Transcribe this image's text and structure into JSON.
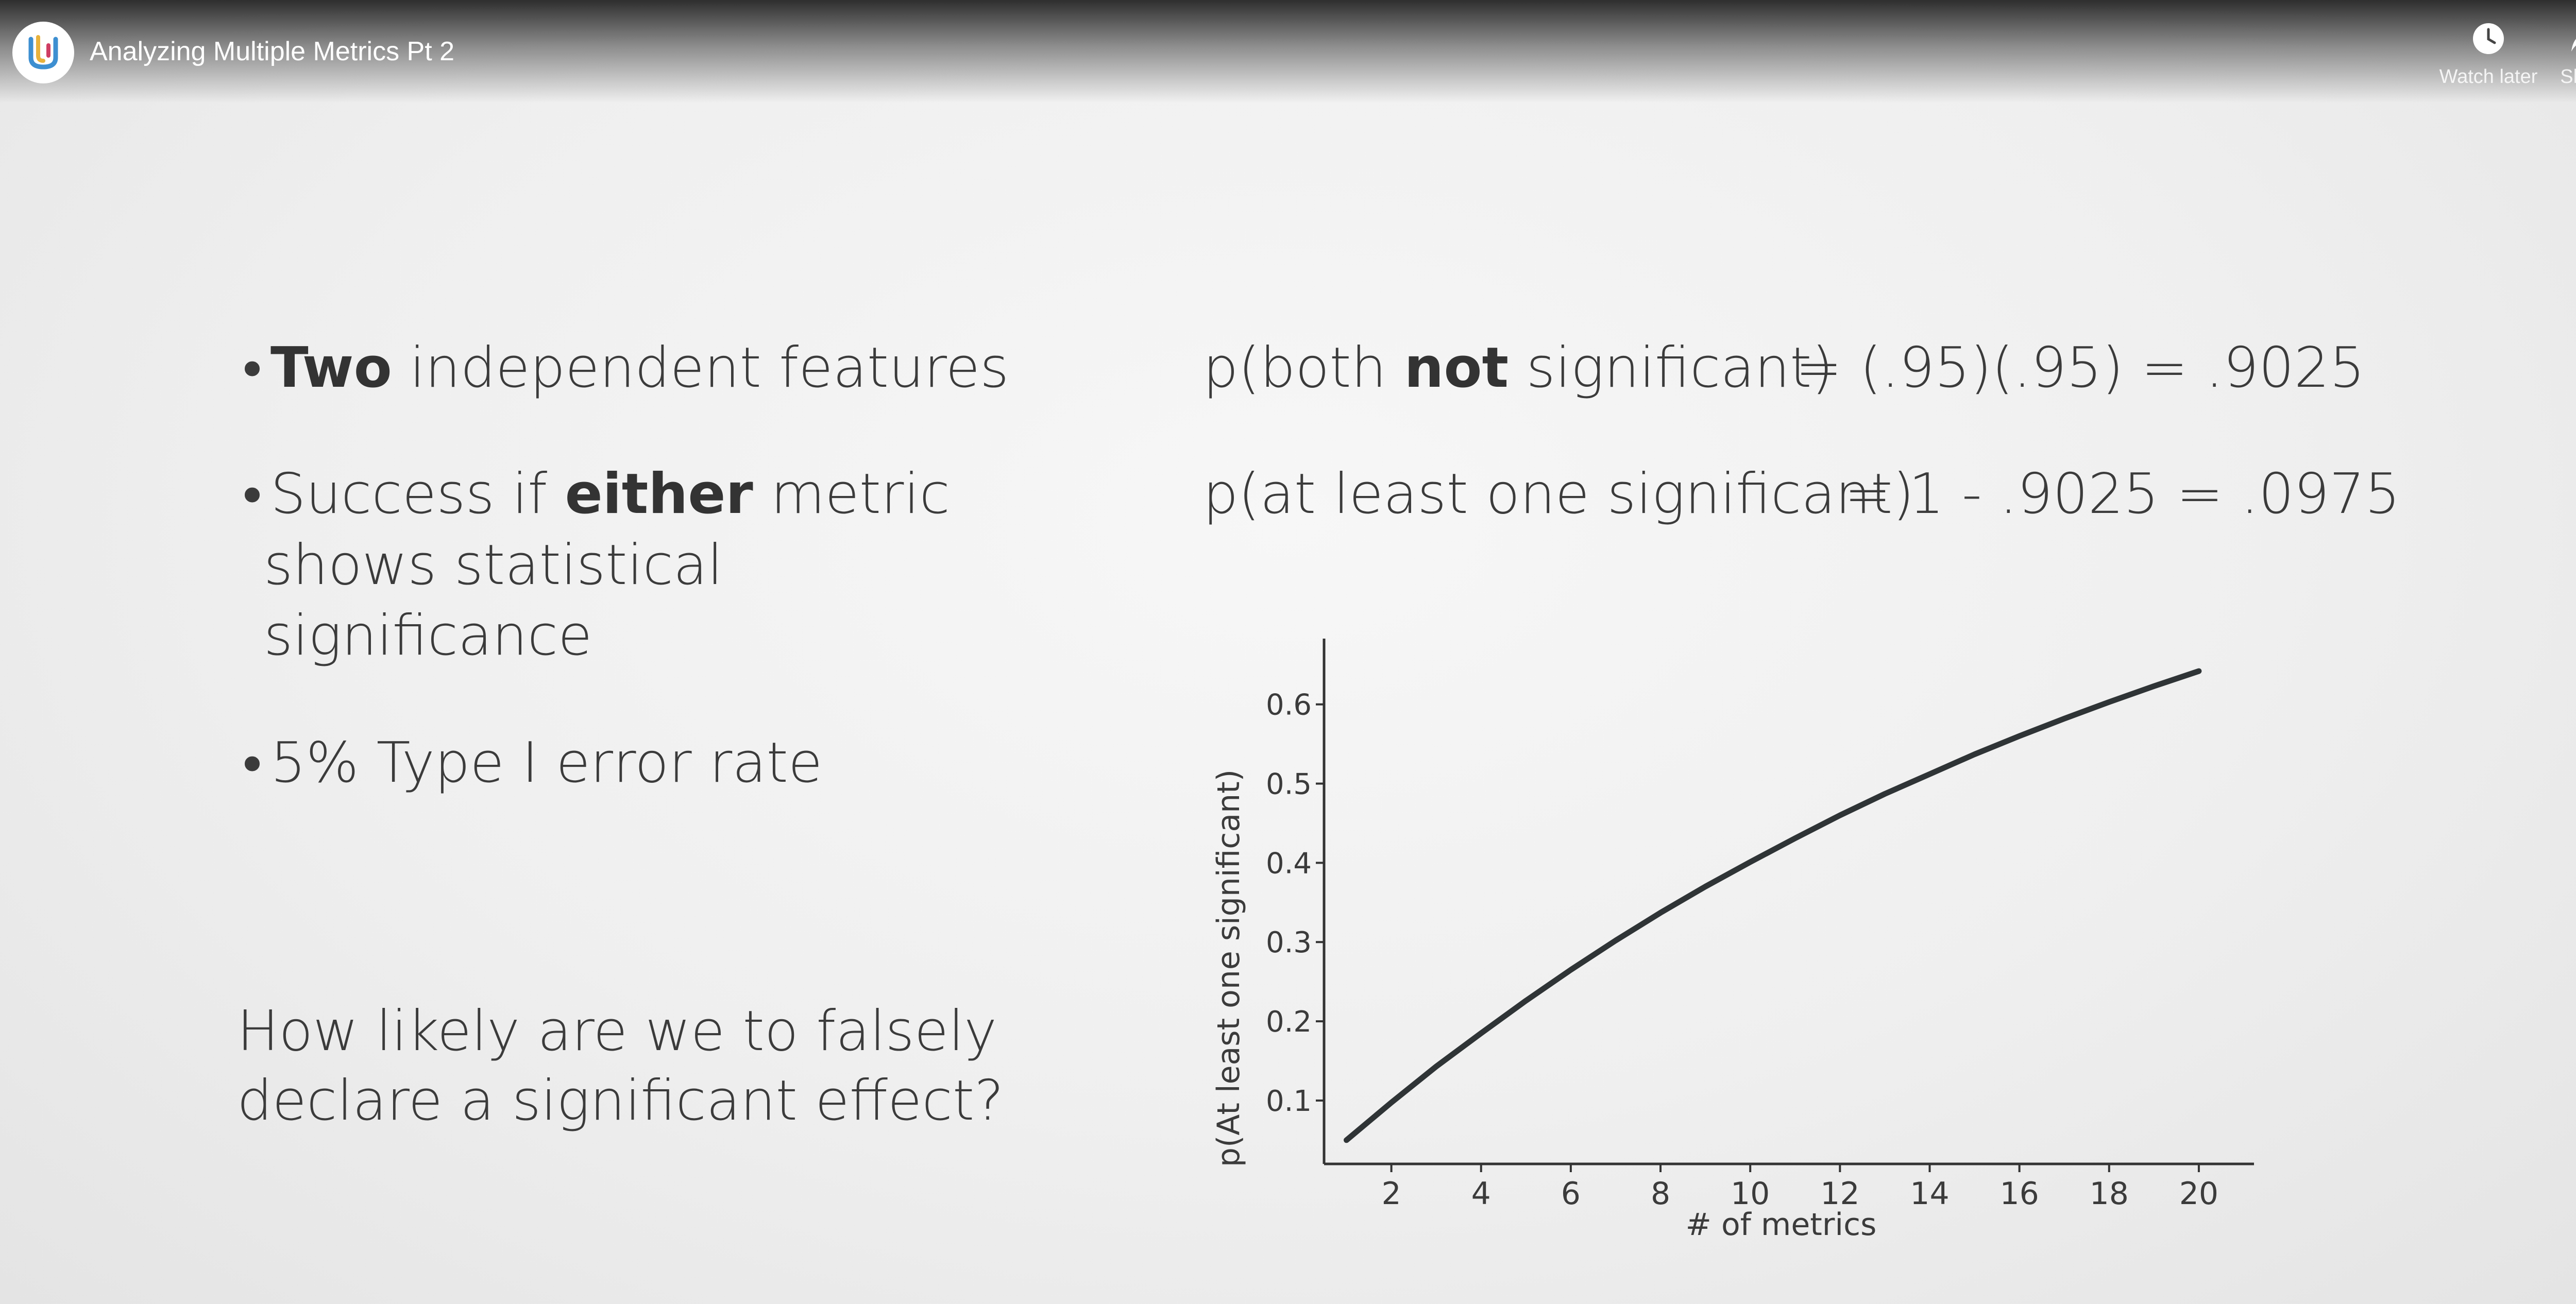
{
  "header": {
    "title": "Analyzing Multiple Metrics Pt 2",
    "watch_later_label": "Watch later",
    "share_label": "Share"
  },
  "slide": {
    "bullets": [
      {
        "bold": "Two",
        "text": " independent features"
      },
      {
        "pre": "Success if ",
        "bold": "either",
        "post": " metric",
        "line2": "shows statistical",
        "line3": "significance"
      },
      {
        "text": "5% Type I error rate"
      }
    ],
    "question_line1": "How likely are we to falsely",
    "question_line2": "declare a significant effect?",
    "eq1": {
      "pre": "p(both ",
      "bold": "not",
      "post": " significant)",
      "rhs": "= (.95)(.95) = .9025"
    },
    "eq2": {
      "lhs": "p(at least one significant)",
      "rhs": "= 1 - .9025 = .0975"
    }
  },
  "chart_data": {
    "type": "line",
    "xlabel": "# of metrics",
    "ylabel": "p(At least one significant)",
    "xlim": [
      0.5,
      21
    ],
    "ylim": [
      0.02,
      0.67
    ],
    "xticks": [
      2,
      4,
      6,
      8,
      10,
      12,
      14,
      16,
      18,
      20
    ],
    "yticks": [
      0.1,
      0.2,
      0.3,
      0.4,
      0.5,
      0.6
    ],
    "ytick_labels": [
      "0.1",
      "0.2",
      "0.3",
      "0.4",
      "0.5",
      "0.6"
    ],
    "series": [
      {
        "x": [
          1,
          2,
          3,
          4,
          5,
          6,
          7,
          8,
          9,
          10,
          11,
          12,
          13,
          14,
          15,
          16,
          17,
          18,
          19,
          20
        ],
        "y": [
          0.05,
          0.0975,
          0.143,
          0.185,
          0.226,
          0.265,
          0.302,
          0.337,
          0.37,
          0.401,
          0.431,
          0.46,
          0.487,
          0.512,
          0.537,
          0.56,
          0.582,
          0.603,
          0.623,
          0.642
        ]
      }
    ],
    "line_color": "#2f3436",
    "grid": false
  },
  "colors": {
    "text": "#3b3b3b",
    "logo_accent_1": "#e8b23c",
    "logo_accent_2": "#3d8fd1"
  }
}
